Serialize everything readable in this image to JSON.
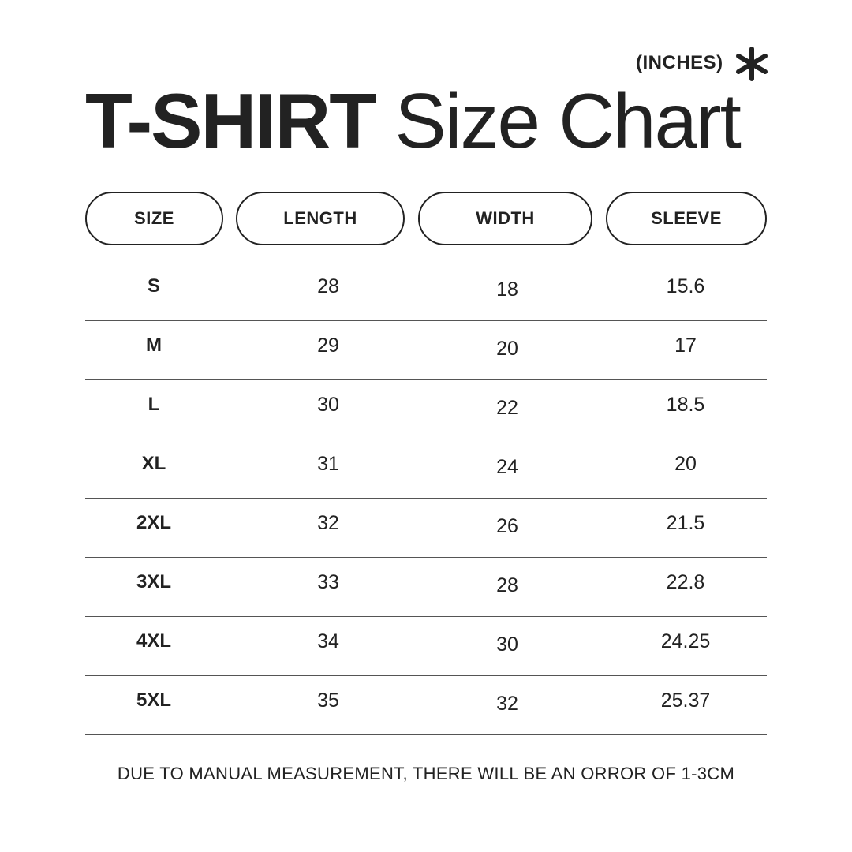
{
  "units_label": "(INCHES)",
  "units_icon": "asterisk-icon",
  "title": {
    "bold": "T-SHIRT",
    "regular": "Size Chart"
  },
  "chart_data": {
    "type": "table",
    "columns": [
      "SIZE",
      "LENGTH",
      "WIDTH",
      "SLEEVE"
    ],
    "rows": [
      [
        "S",
        "28",
        "18",
        "15.6"
      ],
      [
        "M",
        "29",
        "20",
        "17"
      ],
      [
        "L",
        "30",
        "22",
        "18.5"
      ],
      [
        "XL",
        "31",
        "24",
        "20"
      ],
      [
        "2XL",
        "32",
        "26",
        "21.5"
      ],
      [
        "3XL",
        "33",
        "28",
        "22.8"
      ],
      [
        "4XL",
        "34",
        "30",
        "24.25"
      ],
      [
        "5XL",
        "35",
        "32",
        "25.37"
      ]
    ]
  },
  "note": "DUE TO MANUAL MEASUREMENT, THERE WILL BE AN ORROR OF 1-3CM"
}
